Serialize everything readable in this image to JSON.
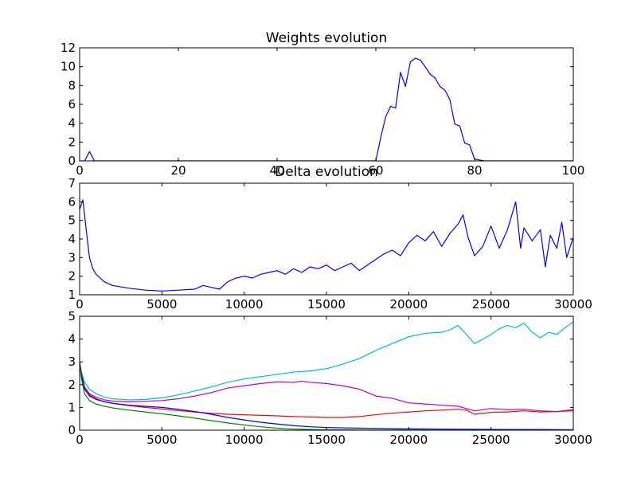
{
  "chart_data": [
    {
      "type": "line",
      "title": "Weights evolution",
      "xlabel": "",
      "ylabel": "",
      "xlim": [
        0,
        100
      ],
      "ylim": [
        0,
        12
      ],
      "xticks": [
        0,
        20,
        40,
        60,
        80,
        100
      ],
      "yticks": [
        0,
        2,
        4,
        6,
        8,
        10,
        12
      ],
      "grid": false,
      "series": [
        {
          "color": "#0000ff",
          "x": [
            0,
            1,
            2,
            3,
            4,
            10,
            20,
            30,
            40,
            50,
            59,
            60,
            61,
            62,
            63,
            64,
            65,
            66,
            67,
            68,
            69,
            70,
            71,
            72,
            73,
            74,
            75,
            76,
            77,
            78,
            79,
            80,
            81,
            82,
            90,
            100
          ],
          "y": [
            0,
            0,
            1.0,
            0,
            0,
            0,
            0,
            0,
            0,
            0,
            0,
            0,
            2.5,
            4.7,
            5.8,
            5.6,
            9.4,
            7.9,
            10.5,
            10.9,
            10.7,
            10.0,
            9.2,
            8.8,
            7.9,
            7.5,
            6.5,
            3.9,
            3.7,
            1.9,
            1.7,
            0.2,
            0.1,
            0,
            0,
            0
          ]
        }
      ]
    },
    {
      "type": "line",
      "title": "Delta evolution",
      "xlabel": "",
      "ylabel": "",
      "xlim": [
        0,
        30000
      ],
      "ylim": [
        1,
        7
      ],
      "xticks": [
        0,
        5000,
        10000,
        15000,
        20000,
        25000,
        30000
      ],
      "yticks": [
        1,
        2,
        3,
        4,
        5,
        6,
        7
      ],
      "grid": false,
      "series": [
        {
          "color": "#0000ff",
          "x": [
            0,
            200,
            400,
            600,
            800,
            1000,
            1500,
            2000,
            3000,
            4000,
            5000,
            6000,
            7000,
            7500,
            8000,
            8500,
            9000,
            9500,
            10000,
            10500,
            11000,
            11500,
            12000,
            12500,
            13000,
            13500,
            14000,
            14500,
            15000,
            15500,
            16000,
            16500,
            17000,
            17500,
            18000,
            18500,
            19000,
            19500,
            20000,
            20500,
            21000,
            21500,
            22000,
            22500,
            23000,
            23300,
            23600,
            24000,
            24500,
            25000,
            25500,
            26000,
            26500,
            26800,
            27000,
            27500,
            28000,
            28300,
            28600,
            29000,
            29300,
            29600,
            30000
          ],
          "y": [
            5.6,
            6.1,
            4.5,
            3.0,
            2.4,
            2.1,
            1.7,
            1.5,
            1.35,
            1.25,
            1.2,
            1.25,
            1.3,
            1.5,
            1.4,
            1.3,
            1.7,
            1.9,
            2.0,
            1.9,
            2.1,
            2.2,
            2.3,
            2.1,
            2.4,
            2.2,
            2.5,
            2.4,
            2.6,
            2.3,
            2.5,
            2.7,
            2.3,
            2.6,
            2.9,
            3.2,
            3.4,
            3.1,
            3.8,
            4.2,
            3.9,
            4.4,
            3.6,
            4.3,
            4.8,
            5.3,
            4.1,
            3.1,
            3.6,
            4.7,
            3.5,
            4.5,
            6.0,
            3.5,
            4.6,
            3.9,
            4.5,
            2.5,
            4.2,
            3.5,
            4.9,
            3.0,
            4.1
          ]
        }
      ]
    },
    {
      "type": "line",
      "title": "",
      "xlabel": "",
      "ylabel": "",
      "xlim": [
        0,
        30000
      ],
      "ylim": [
        0,
        5
      ],
      "xticks": [
        0,
        5000,
        10000,
        15000,
        20000,
        25000,
        30000
      ],
      "yticks": [
        0,
        1,
        2,
        3,
        4,
        5
      ],
      "grid": false,
      "series": [
        {
          "color": "#00bfbf",
          "x": [
            0,
            100,
            300,
            600,
            1000,
            1500,
            2000,
            3000,
            4000,
            5000,
            6000,
            7000,
            8000,
            9000,
            10000,
            11000,
            12000,
            13000,
            14000,
            15000,
            16000,
            17000,
            18000,
            19000,
            20000,
            21000,
            22000,
            22500,
            23000,
            23500,
            24000,
            24500,
            25000,
            25500,
            26000,
            26500,
            27000,
            27500,
            28000,
            28500,
            29000,
            29500,
            30000
          ],
          "y": [
            3.0,
            2.6,
            2.1,
            1.8,
            1.6,
            1.45,
            1.38,
            1.33,
            1.35,
            1.42,
            1.55,
            1.72,
            1.9,
            2.1,
            2.25,
            2.35,
            2.45,
            2.55,
            2.6,
            2.7,
            2.9,
            3.15,
            3.5,
            3.8,
            4.1,
            4.25,
            4.3,
            4.4,
            4.6,
            4.2,
            3.8,
            4.0,
            4.2,
            4.45,
            4.6,
            4.5,
            4.7,
            4.3,
            4.05,
            4.3,
            4.2,
            4.5,
            4.75
          ]
        },
        {
          "color": "#bf00bf",
          "x": [
            0,
            100,
            300,
            600,
            1000,
            1500,
            2000,
            3000,
            4000,
            5000,
            6000,
            7000,
            8000,
            9000,
            10000,
            11000,
            12000,
            13000,
            13500,
            14000,
            15000,
            16000,
            17000,
            18000,
            19000,
            20000,
            21000,
            22000,
            23000,
            24000,
            25000,
            26000,
            27000,
            28000,
            29000,
            30000
          ],
          "y": [
            3.0,
            2.5,
            1.9,
            1.6,
            1.45,
            1.33,
            1.28,
            1.25,
            1.27,
            1.3,
            1.38,
            1.5,
            1.65,
            1.85,
            1.95,
            2.05,
            2.12,
            2.1,
            2.15,
            2.1,
            2.05,
            1.95,
            1.8,
            1.5,
            1.4,
            1.2,
            1.15,
            1.1,
            1.05,
            0.85,
            0.95,
            0.9,
            0.92,
            0.85,
            0.82,
            0.9
          ]
        },
        {
          "color": "#ff0000",
          "x": [
            0,
            100,
            300,
            600,
            1000,
            1500,
            2000,
            3000,
            4000,
            5000,
            6000,
            7000,
            8000,
            9000,
            10000,
            11000,
            12000,
            13000,
            14000,
            15000,
            16000,
            17000,
            18000,
            19000,
            20000,
            21000,
            22000,
            23000,
            23500,
            24000,
            25000,
            26000,
            27000,
            28000,
            29000,
            30000
          ],
          "y": [
            3.0,
            2.5,
            1.85,
            1.55,
            1.38,
            1.25,
            1.18,
            1.08,
            1.0,
            0.93,
            0.86,
            0.8,
            0.74,
            0.7,
            0.68,
            0.65,
            0.63,
            0.6,
            0.58,
            0.56,
            0.56,
            0.6,
            0.68,
            0.75,
            0.8,
            0.85,
            0.88,
            0.92,
            0.88,
            0.7,
            0.78,
            0.8,
            0.85,
            0.8,
            0.82,
            0.85
          ]
        },
        {
          "color": "#0000ff",
          "x": [
            0,
            100,
            300,
            600,
            1000,
            1500,
            2000,
            3000,
            4000,
            5000,
            6000,
            7000,
            8000,
            9000,
            10000,
            11000,
            12000,
            13000,
            14000,
            15000,
            16000,
            18000,
            20000,
            22000,
            24000,
            26000,
            28000,
            30000
          ],
          "y": [
            3.0,
            2.45,
            1.8,
            1.5,
            1.35,
            1.25,
            1.18,
            1.1,
            1.05,
            1.0,
            0.92,
            0.82,
            0.7,
            0.56,
            0.45,
            0.35,
            0.27,
            0.2,
            0.15,
            0.12,
            0.1,
            0.08,
            0.06,
            0.05,
            0.04,
            0.03,
            0.03,
            0.02
          ]
        },
        {
          "color": "#008000",
          "x": [
            0,
            100,
            300,
            600,
            1000,
            1500,
            2000,
            3000,
            4000,
            5000,
            6000,
            7000,
            8000,
            9000,
            10000,
            11000,
            12000,
            13000,
            14000,
            15000,
            16000,
            18000,
            20000,
            22000,
            24000,
            26000,
            28000,
            30000
          ],
          "y": [
            3.0,
            2.3,
            1.6,
            1.3,
            1.15,
            1.05,
            0.98,
            0.88,
            0.8,
            0.72,
            0.63,
            0.53,
            0.42,
            0.32,
            0.23,
            0.15,
            0.09,
            0.05,
            0.03,
            0.02,
            0.015,
            0.01,
            0.01,
            0.005,
            0.005,
            0.003,
            0.002,
            0.002
          ]
        }
      ]
    }
  ]
}
